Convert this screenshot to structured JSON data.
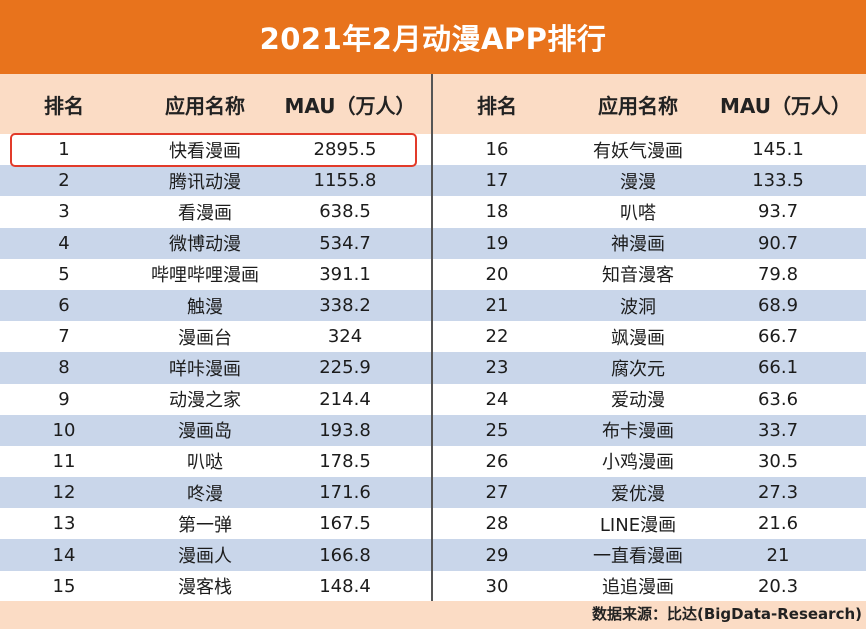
{
  "title": "2021年2月动漫APP排行",
  "headers": {
    "rank": "排名",
    "name": "应用名称",
    "mau": "MAU（万人）"
  },
  "source": "数据来源：比达(BigData-Research)",
  "colors": {
    "title_bg": "#e8731c",
    "header_bg": "#fbdcc5",
    "row_alt": "#c9d6ea",
    "highlight": "#e23b2a"
  },
  "chart_data": {
    "type": "table",
    "title": "2021年2月动漫APP排行",
    "columns": [
      "排名",
      "应用名称",
      "MAU（万人）"
    ],
    "rows": [
      {
        "rank": "1",
        "name": "快看漫画",
        "mau": "2895.5"
      },
      {
        "rank": "2",
        "name": "腾讯动漫",
        "mau": "1155.8"
      },
      {
        "rank": "3",
        "name": "看漫画",
        "mau": "638.5"
      },
      {
        "rank": "4",
        "name": "微博动漫",
        "mau": "534.7"
      },
      {
        "rank": "5",
        "name": "哔哩哔哩漫画",
        "mau": "391.1"
      },
      {
        "rank": "6",
        "name": "触漫",
        "mau": "338.2"
      },
      {
        "rank": "7",
        "name": "漫画台",
        "mau": "324"
      },
      {
        "rank": "8",
        "name": "咩咔漫画",
        "mau": "225.9"
      },
      {
        "rank": "9",
        "name": "动漫之家",
        "mau": "214.4"
      },
      {
        "rank": "10",
        "name": "漫画岛",
        "mau": "193.8"
      },
      {
        "rank": "11",
        "name": "叭哒",
        "mau": "178.5"
      },
      {
        "rank": "12",
        "name": "咚漫",
        "mau": "171.6"
      },
      {
        "rank": "13",
        "name": "第一弹",
        "mau": "167.5"
      },
      {
        "rank": "14",
        "name": "漫画人",
        "mau": "166.8"
      },
      {
        "rank": "15",
        "name": "漫客栈",
        "mau": "148.4"
      },
      {
        "rank": "16",
        "name": "有妖气漫画",
        "mau": "145.1"
      },
      {
        "rank": "17",
        "name": "漫漫",
        "mau": "133.5"
      },
      {
        "rank": "18",
        "name": "叭嗒",
        "mau": "93.7"
      },
      {
        "rank": "19",
        "name": "神漫画",
        "mau": "90.7"
      },
      {
        "rank": "20",
        "name": "知音漫客",
        "mau": "79.8"
      },
      {
        "rank": "21",
        "name": "波洞",
        "mau": "68.9"
      },
      {
        "rank": "22",
        "name": "飒漫画",
        "mau": "66.7"
      },
      {
        "rank": "23",
        "name": "腐次元",
        "mau": "66.1"
      },
      {
        "rank": "24",
        "name": "爱动漫",
        "mau": "63.6"
      },
      {
        "rank": "25",
        "name": "布卡漫画",
        "mau": "33.7"
      },
      {
        "rank": "26",
        "name": "小鸡漫画",
        "mau": "30.5"
      },
      {
        "rank": "27",
        "name": "爱优漫",
        "mau": "27.3"
      },
      {
        "rank": "28",
        "name": "LINE漫画",
        "mau": "21.6"
      },
      {
        "rank": "29",
        "name": "一直看漫画",
        "mau": "21"
      },
      {
        "rank": "30",
        "name": "追追漫画",
        "mau": "20.3"
      }
    ]
  }
}
